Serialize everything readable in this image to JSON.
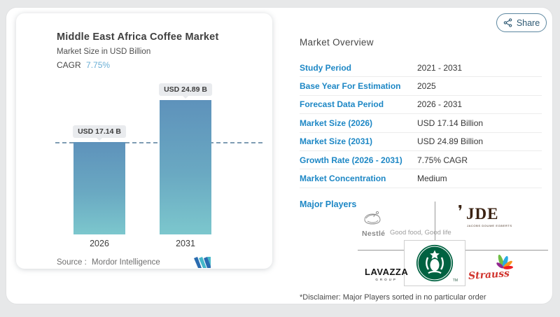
{
  "share": {
    "label": "Share"
  },
  "chart_data": {
    "type": "bar",
    "title": "Middle East Africa Coffee Market",
    "subtitle": "Market Size in USD Billion",
    "cagr_label": "CAGR",
    "cagr_value": "7.75%",
    "categories": [
      "2026",
      "2031"
    ],
    "values": [
      17.14,
      24.89
    ],
    "bar_labels": [
      "USD 17.14 B",
      "USD 24.89 B"
    ],
    "ylabel": "Market Size (USD Billion)",
    "baseline_dashed_at": 17.14,
    "legend": "none",
    "source_label": "Source :",
    "source_name": "Mordor Intelligence",
    "bar_color_top": "#5e92bb",
    "bar_color_bottom": "#7cc7cd"
  },
  "overview": {
    "heading": "Market Overview",
    "rows": [
      {
        "label": "Study Period",
        "value": "2021 - 2031"
      },
      {
        "label": "Base Year For Estimation",
        "value": "2025"
      },
      {
        "label": "Forecast Data Period",
        "value": "2026 - 2031"
      },
      {
        "label": "Market Size (2026)",
        "value": "USD 17.14 Billion"
      },
      {
        "label": "Market Size (2031)",
        "value": "USD 24.89 Billion"
      },
      {
        "label": "Growth Rate (2026 - 2031)",
        "value": "7.75% CAGR"
      },
      {
        "label": "Market Concentration",
        "value": "Medium"
      }
    ],
    "major_players_label": "Major Players",
    "disclaimer": "*Disclaimer: Major Players sorted in no particular order"
  },
  "players": {
    "nestle": {
      "name": "Nestlé",
      "tagline": "Good food, Good life"
    },
    "jde": {
      "name": "JDE",
      "flame": "❜",
      "subtext": "JACOBS DOUWE EGBERTS"
    },
    "starbucks": {
      "name": "Starbucks",
      "tm": "TM"
    },
    "lavazza": {
      "name": "LAVAZZA",
      "subtext": "GROUP"
    },
    "strauss": {
      "name": "Strauss"
    }
  },
  "colors": {
    "accent_blue": "#1d87c5",
    "cagr_blue": "#69aed5",
    "starbucks_green": "#006241",
    "jde_brown": "#3b2313",
    "strauss_red": "#d1342e"
  }
}
